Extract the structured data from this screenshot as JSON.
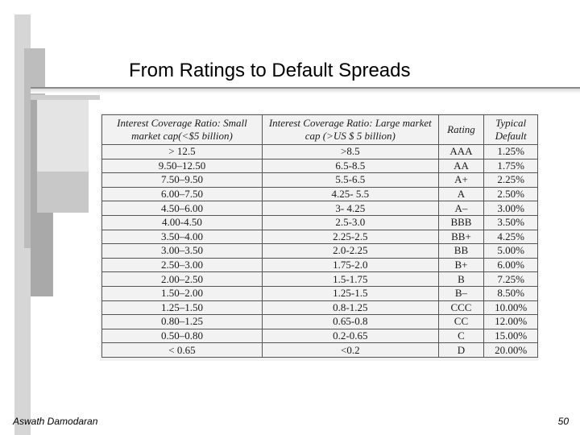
{
  "title": "From Ratings to Default Spreads",
  "footer": {
    "author": "Aswath Damodaran",
    "page_number": "50"
  },
  "table": {
    "headers": [
      "Interest Coverage Ratio: Small market cap(<$5 billion)",
      "Interest Coverage Ratio: Large market cap (>US $ 5 billion)",
      "Rating",
      "Typical Default"
    ],
    "rows": [
      [
        "> 12.5",
        ">8.5",
        "AAA",
        "1.25%"
      ],
      [
        "9.50–12.50",
        "6.5-8.5",
        "AA",
        "1.75%"
      ],
      [
        "7.50–9.50",
        "5.5-6.5",
        "A+",
        "2.25%"
      ],
      [
        "6.00–7.50",
        "4.25- 5.5",
        "A",
        "2.50%"
      ],
      [
        "4.50–6.00",
        "3- 4.25",
        "A–",
        "3.00%"
      ],
      [
        "4.00-4.50",
        "2.5-3.0",
        "BBB",
        "3.50%"
      ],
      [
        "3.50–4.00",
        "2.25-2.5",
        "BB+",
        "4.25%"
      ],
      [
        "3.00–3.50",
        "2.0-2.25",
        "BB",
        "5.00%"
      ],
      [
        "2.50–3.00",
        "1.75-2.0",
        "B+",
        "6.00%"
      ],
      [
        "2.00–2.50",
        "1.5-1.75",
        "B",
        "7.25%"
      ],
      [
        "1.50–2.00",
        "1.25-1.5",
        "B–",
        "8.50%"
      ],
      [
        "1.25–1.50",
        "0.8-1.25",
        "CCC",
        "10.00%"
      ],
      [
        "0.80–1.25",
        "0.65-0.8",
        "CC",
        "12.00%"
      ],
      [
        "0.50–0.80",
        "0.2-0.65",
        "C",
        "15.00%"
      ],
      [
        "< 0.65",
        "<0.2",
        "D",
        "20.00%"
      ]
    ]
  }
}
